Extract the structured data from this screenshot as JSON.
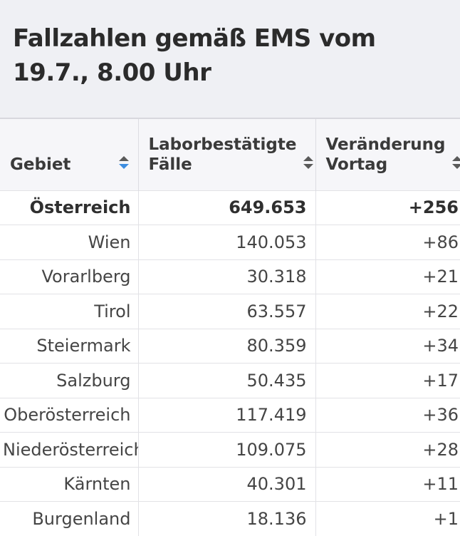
{
  "title": "Fallzahlen gemäß EMS vom 19.7., 8.00 Uhr",
  "colors": {
    "title_background": "#eff0f4",
    "header_background": "#f6f6f9",
    "sort_active": "#3d8de0",
    "sort_inactive": "#5a5a5a"
  },
  "table": {
    "columns": [
      {
        "label": "Gebiet",
        "sort": "active",
        "sort_icon": "sort-updown-icon"
      },
      {
        "label": "Laborbestätigte Fälle",
        "sort": "none",
        "sort_icon": "sort-updown-icon"
      },
      {
        "label": "Veränderung Vortag",
        "sort": "none",
        "sort_icon": "sort-updown-icon"
      }
    ],
    "rows": [
      {
        "gebiet": "Österreich",
        "faelle": "649.653",
        "veraenderung": "+256"
      },
      {
        "gebiet": "Wien",
        "faelle": "140.053",
        "veraenderung": "+86"
      },
      {
        "gebiet": "Vorarlberg",
        "faelle": "30.318",
        "veraenderung": "+21"
      },
      {
        "gebiet": "Tirol",
        "faelle": "63.557",
        "veraenderung": "+22"
      },
      {
        "gebiet": "Steiermark",
        "faelle": "80.359",
        "veraenderung": "+34"
      },
      {
        "gebiet": "Salzburg",
        "faelle": "50.435",
        "veraenderung": "+17"
      },
      {
        "gebiet": "Oberösterreich",
        "faelle": "117.419",
        "veraenderung": "+36"
      },
      {
        "gebiet": "Niederösterreich",
        "faelle": "109.075",
        "veraenderung": "+28"
      },
      {
        "gebiet": "Kärnten",
        "faelle": "40.301",
        "veraenderung": "+11"
      },
      {
        "gebiet": "Burgenland",
        "faelle": "18.136",
        "veraenderung": "+1"
      }
    ]
  }
}
